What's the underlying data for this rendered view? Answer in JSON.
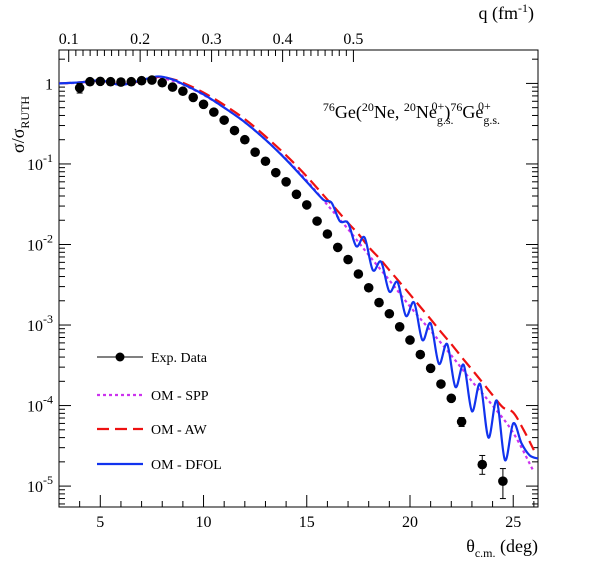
{
  "chart_data": {
    "type": "scatter",
    "title": "",
    "annotation": {
      "pre_sup": "76",
      "nucleus1": "Ge(",
      "proj_sup": "20",
      "proj": "Ne, ",
      "eject_sup": "20",
      "eject": "Ne",
      "eject_sub": "g.s.",
      "eject_spin": "0+",
      "close": ")",
      "res_sup": "76",
      "res": "Ge",
      "res_sub": "g.s.",
      "res_spin": "0+"
    },
    "xlabel": {
      "base": "θ",
      "sub": "c.m.",
      "tail": " (deg)"
    },
    "ylabel": {
      "base": "σ/σ",
      "sub": "RUTH"
    },
    "top_axis_label": {
      "base": "q (fm",
      "sup": "-1",
      "tail": ")"
    },
    "xlim": [
      3,
      26.2
    ],
    "ylim": [
      5.5e-06,
      2.6
    ],
    "yscale": "log",
    "x_ticks": [
      5,
      10,
      15,
      20,
      25
    ],
    "x_tick_labels": [
      "5",
      "10",
      "15",
      "20",
      "25"
    ],
    "y_ticks": [
      1e-05,
      0.0001,
      0.001,
      0.01,
      0.1,
      1
    ],
    "y_tick_labels": [
      {
        "base": "10",
        "sup": "-5"
      },
      {
        "base": "10",
        "sup": "-4"
      },
      {
        "base": "10",
        "sup": "-3"
      },
      {
        "base": "10",
        "sup": "-2"
      },
      {
        "base": "10",
        "sup": "-1"
      },
      {
        "base": "1",
        "sup": ""
      }
    ],
    "top_ticks_x": [
      3.47,
      6.93,
      10.39,
      13.83,
      17.26
    ],
    "top_tick_labels": [
      "0.1",
      "0.2",
      "0.3",
      "0.4",
      "0.5"
    ],
    "grid": false,
    "legend_position": "lower-left",
    "series": [
      {
        "name": "Exp. Data",
        "kind": "points",
        "color": "#000000",
        "x": [
          4.0,
          4.5,
          5.0,
          5.5,
          6.0,
          6.5,
          7.0,
          7.5,
          8.0,
          8.5,
          9.0,
          9.5,
          10.0,
          10.5,
          11.0,
          11.5,
          12.0,
          12.5,
          13.0,
          13.5,
          14.0,
          14.5,
          15.0,
          15.5,
          16.0,
          16.5,
          17.0,
          17.5,
          18.0,
          18.5,
          19.0,
          19.5,
          20.0,
          20.5,
          21.0,
          21.5,
          22.0,
          22.5,
          23.5,
          24.5
        ],
        "y": [
          0.88,
          1.05,
          1.06,
          1.05,
          1.04,
          1.05,
          1.08,
          1.1,
          1.02,
          0.9,
          0.8,
          0.67,
          0.55,
          0.44,
          0.35,
          0.26,
          0.2,
          0.14,
          0.108,
          0.078,
          0.06,
          0.042,
          0.031,
          0.0195,
          0.0135,
          0.0092,
          0.0065,
          0.0043,
          0.0029,
          0.0019,
          0.00138,
          0.00095,
          0.00065,
          0.00043,
          0.00029,
          0.000185,
          0.000123,
          6.3e-05,
          1.85e-05,
          1.15e-05
        ],
        "yerr_low": [
          0.12,
          0,
          0,
          0,
          0,
          0,
          0,
          0,
          0,
          0,
          0,
          0,
          0,
          0,
          0,
          0,
          0,
          0,
          0,
          0,
          0,
          0,
          0,
          0,
          0,
          0,
          0,
          0,
          0,
          0,
          0,
          0,
          0,
          0,
          0,
          0,
          0,
          8e-06,
          4.5e-06,
          4.5e-06
        ],
        "yerr_high": [
          0.12,
          0,
          0,
          0,
          0,
          0,
          0,
          0,
          0,
          0,
          0,
          0,
          0,
          0,
          0,
          0,
          0,
          0,
          0,
          0,
          0,
          0,
          0,
          0,
          0,
          0,
          0,
          0,
          0,
          0,
          0,
          0,
          0,
          0,
          0,
          0,
          0,
          8e-06,
          5.5e-06,
          5e-06
        ]
      },
      {
        "name": "OM - SPP",
        "kind": "line",
        "style": "dotted",
        "color": "#cc33ee",
        "x": [
          3.0,
          4.0,
          5.0,
          6.0,
          7.0,
          7.8,
          8.5,
          9.0,
          10.0,
          11.0,
          12.0,
          13.0,
          14.0,
          15.0,
          16.0,
          17.0,
          18.0,
          19.0,
          20.0,
          21.0,
          22.0,
          23.0,
          24.0,
          25.0,
          26.0
        ],
        "y": [
          1.0,
          1.02,
          1.07,
          0.98,
          1.07,
          1.17,
          1.08,
          0.97,
          0.72,
          0.5,
          0.33,
          0.2,
          0.115,
          0.062,
          0.031,
          0.0155,
          0.0074,
          0.0036,
          0.0017,
          0.00085,
          0.00042,
          0.0002,
          0.0001,
          4.6e-05,
          1.5e-05
        ]
      },
      {
        "name": "OM - AW",
        "kind": "line",
        "style": "dashed",
        "color": "#ee1111",
        "x": [
          3.0,
          4.0,
          5.0,
          6.0,
          7.0,
          7.8,
          8.5,
          9.0,
          10.0,
          11.0,
          12.0,
          13.0,
          14.0,
          15.0,
          16.0,
          16.5,
          17.0,
          17.5,
          18.0,
          18.5,
          19.0,
          19.5,
          20.0,
          20.5,
          21.0,
          21.5,
          22.0,
          22.5,
          23.0,
          23.5,
          24.0,
          24.5,
          25.0,
          25.5,
          26.0
        ],
        "y": [
          1.0,
          1.03,
          1.08,
          0.97,
          1.08,
          1.2,
          1.13,
          1.02,
          0.77,
          0.54,
          0.36,
          0.22,
          0.128,
          0.07,
          0.036,
          0.026,
          0.0185,
          0.0135,
          0.0093,
          0.0068,
          0.0048,
          0.0034,
          0.0024,
          0.00168,
          0.00118,
          0.00082,
          0.00058,
          0.0004,
          0.00028,
          0.000195,
          0.000135,
          9.5e-05,
          8.2e-05,
          5e-05,
          2.8e-05
        ]
      },
      {
        "name": "OM - DFOL",
        "kind": "line",
        "style": "solid",
        "color": "#1133ee",
        "x": [
          3.0,
          4.0,
          5.0,
          6.0,
          7.0,
          7.8,
          8.5,
          9.0,
          10.0,
          11.0,
          12.0,
          13.0,
          14.0,
          15.0,
          15.8,
          16.2,
          16.6,
          17.0,
          17.4,
          17.8,
          18.2,
          18.6,
          19.0,
          19.4,
          19.8,
          20.2,
          20.6,
          21.0,
          21.4,
          21.8,
          22.2,
          22.6,
          23.0,
          23.4,
          23.8,
          24.2,
          24.6,
          25.0,
          25.4,
          25.8,
          26.2
        ],
        "y": [
          1.0,
          1.03,
          1.09,
          0.96,
          1.1,
          1.22,
          1.12,
          0.98,
          0.73,
          0.5,
          0.33,
          0.2,
          0.113,
          0.06,
          0.036,
          0.033,
          0.0195,
          0.0185,
          0.0095,
          0.0122,
          0.0048,
          0.0061,
          0.0026,
          0.0034,
          0.0013,
          0.0019,
          0.00065,
          0.00105,
          0.00033,
          0.00058,
          0.00017,
          0.00032,
          8.5e-05,
          0.000185,
          4e-05,
          0.000115,
          2.1e-05,
          6e-05,
          3.4e-05,
          2.4e-05,
          2.2e-05
        ]
      }
    ]
  }
}
